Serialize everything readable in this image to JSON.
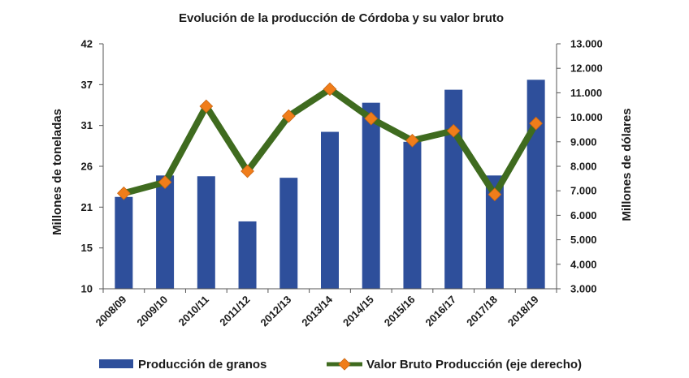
{
  "chart_data": {
    "type": "bar",
    "title": "Evolución de la producción de Córdoba y su valor bruto",
    "categories": [
      "2008/09",
      "2009/10",
      "2010/11",
      "2011/12",
      "2012/13",
      "2013/14",
      "2014/15",
      "2015/16",
      "2016/17",
      "2017/18",
      "2018/19"
    ],
    "y_left": {
      "label": "Millones de toneladas",
      "ticks": [
        "10",
        "15",
        "21",
        "26",
        "31",
        "37",
        "42"
      ],
      "range": [
        10,
        42
      ]
    },
    "y_right": {
      "label": "Millones de dólares",
      "ticks": [
        "3.000",
        "4.000",
        "5.000",
        "6.000",
        "7.000",
        "8.000",
        "9.000",
        "10.000",
        "11.000",
        "12.000",
        "13.000"
      ],
      "range": [
        3000,
        13000
      ]
    },
    "series": [
      {
        "name": "Producción de granos",
        "kind": "bar",
        "axis": "left",
        "color": "#2e4f9b",
        "values": [
          22.0,
          24.8,
          24.7,
          18.8,
          24.5,
          30.5,
          34.3,
          29.2,
          36.0,
          24.8,
          37.3
        ]
      },
      {
        "name": "Valor Bruto Producción (eje derecho)",
        "kind": "line",
        "axis": "right",
        "color": "#3f6b1f",
        "marker_color": "#f07d1a",
        "values": [
          6900,
          7350,
          10450,
          7800,
          10050,
          11150,
          9950,
          9050,
          9450,
          6850,
          9750
        ]
      }
    ],
    "legend_position": "bottom",
    "grid": false
  }
}
